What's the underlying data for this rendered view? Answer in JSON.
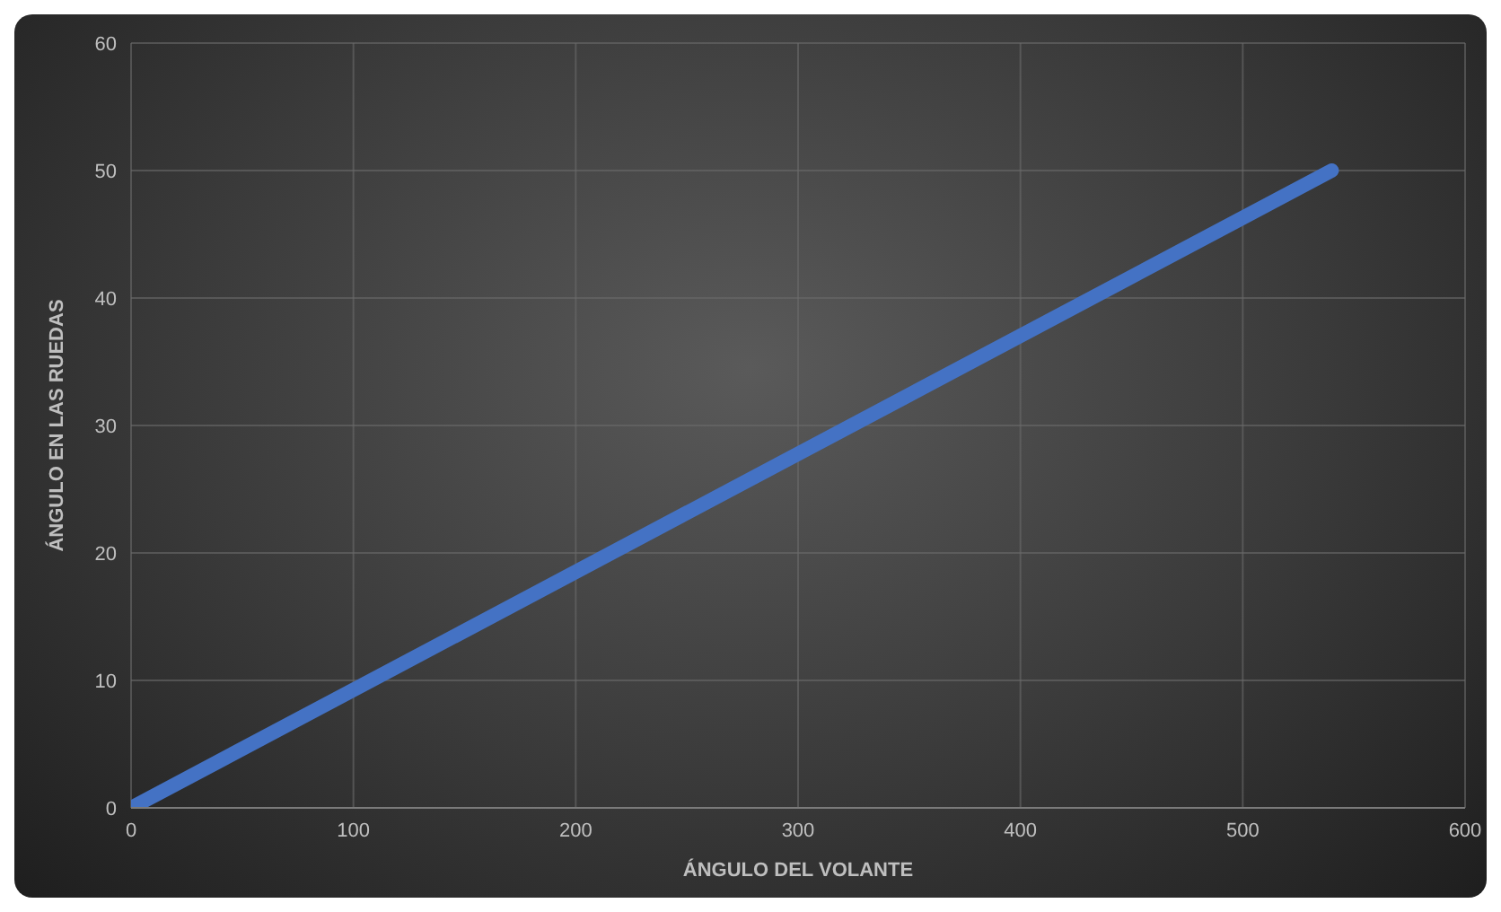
{
  "chart_data": {
    "type": "line",
    "xlabel": "ÁNGULO DEL VOLANTE",
    "ylabel": "ÁNGULO EN LAS RUEDAS",
    "x": [
      0,
      540
    ],
    "series": [
      {
        "color": "#4472c4",
        "values": [
          0,
          50
        ]
      }
    ],
    "xlim": [
      0,
      600
    ],
    "xticks": [
      0,
      100,
      200,
      300,
      400,
      500,
      600
    ],
    "ylim": [
      0,
      60
    ],
    "yticks": [
      0,
      10,
      20,
      30,
      40,
      50,
      60
    ],
    "grid": true,
    "marker": "none",
    "line_style": "solid"
  }
}
